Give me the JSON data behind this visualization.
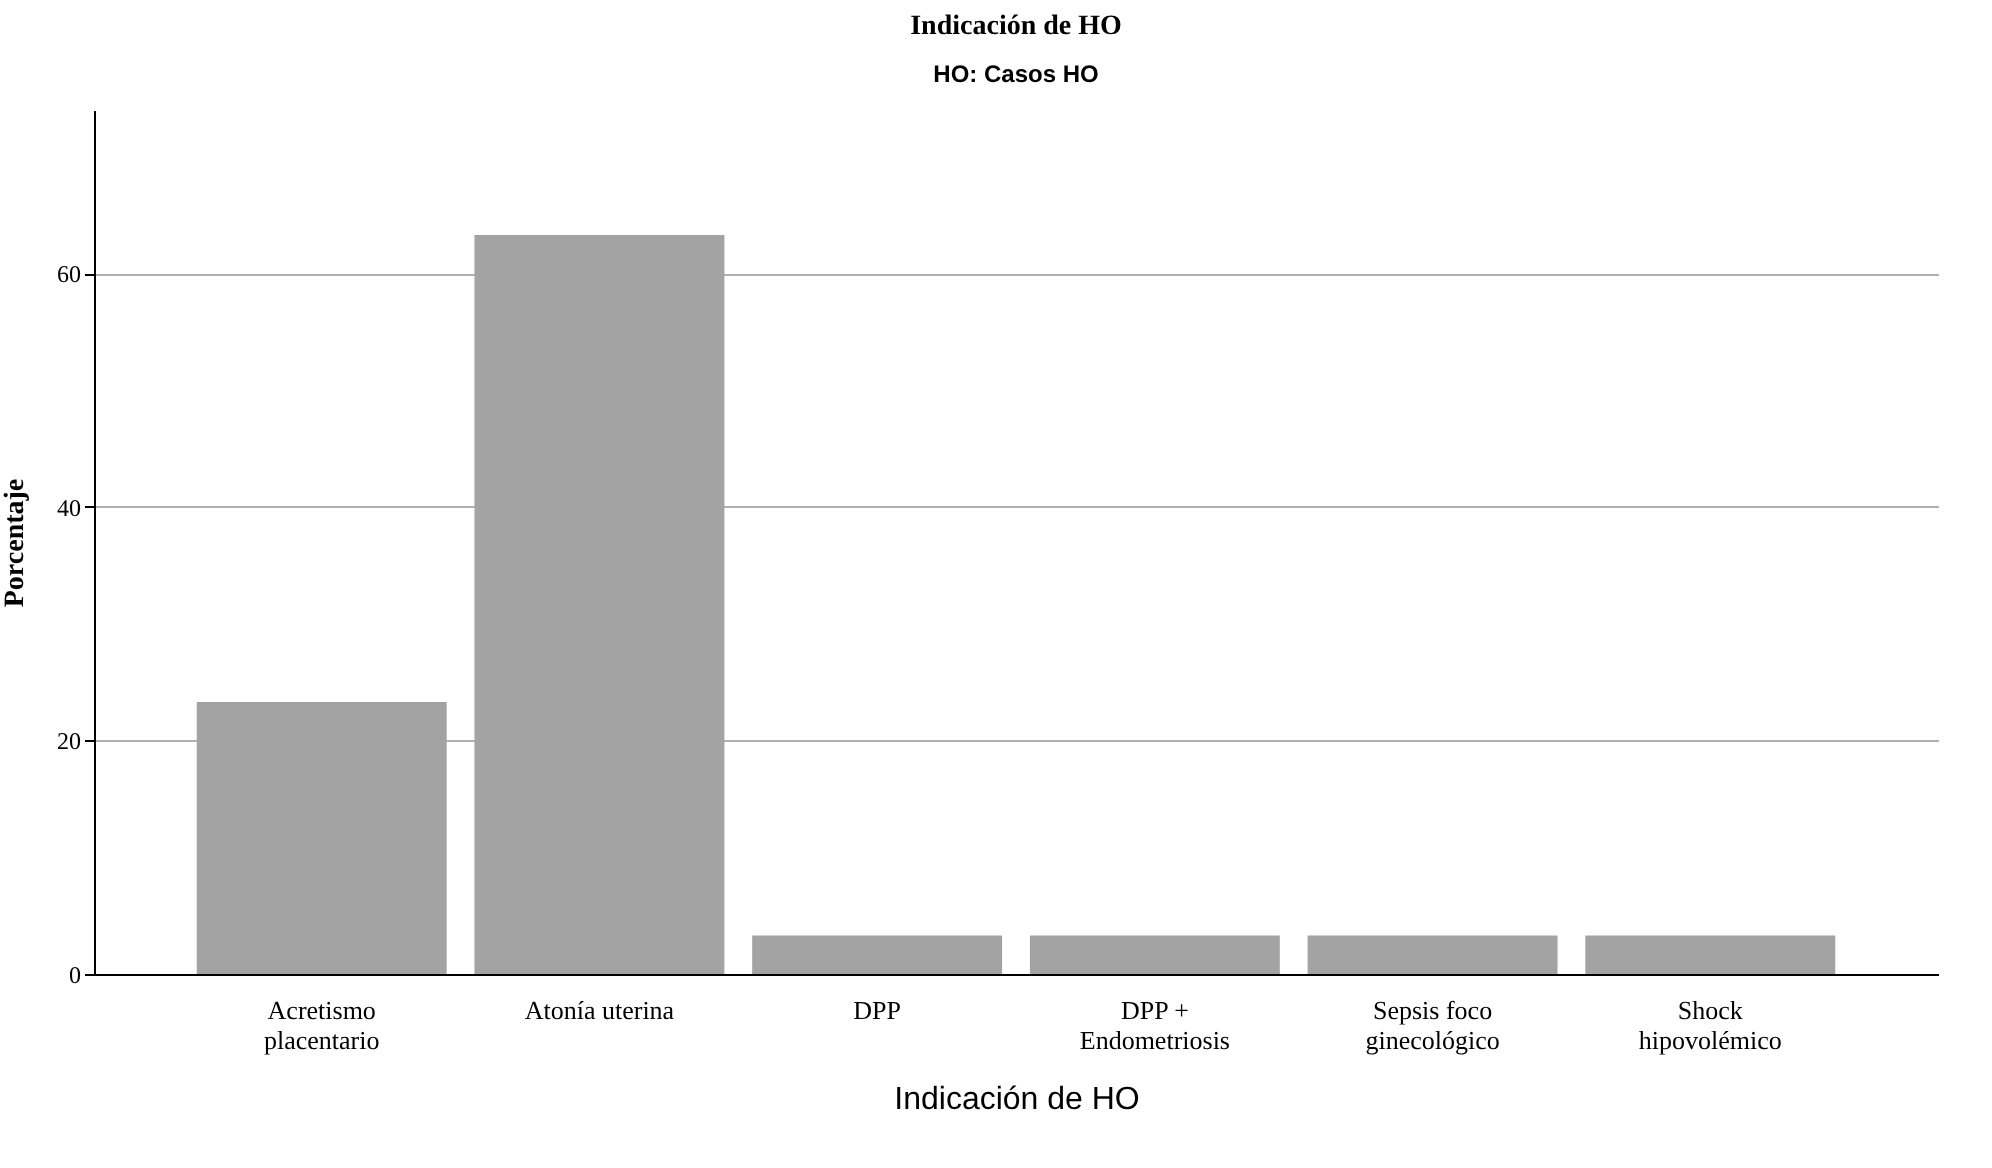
{
  "chart_data": {
    "type": "bar",
    "title": "Indicación de HO",
    "subtitle": "HO: Casos HO",
    "xlabel": "Indicación de HO",
    "ylabel": "Porcentaje",
    "categories": [
      "Acretismo placentario",
      "Atonía uterina",
      "DPP",
      "DPP + Endometriosis",
      "Sepsis foco ginecológico",
      "Shock hipovolémico"
    ],
    "values": [
      23.3,
      63.3,
      3.3,
      3.3,
      3.3,
      3.3
    ],
    "color": "#a3a3a3",
    "ylim": [
      0,
      74
    ],
    "yticks": [
      0,
      20,
      40,
      60
    ],
    "grid": "y"
  }
}
